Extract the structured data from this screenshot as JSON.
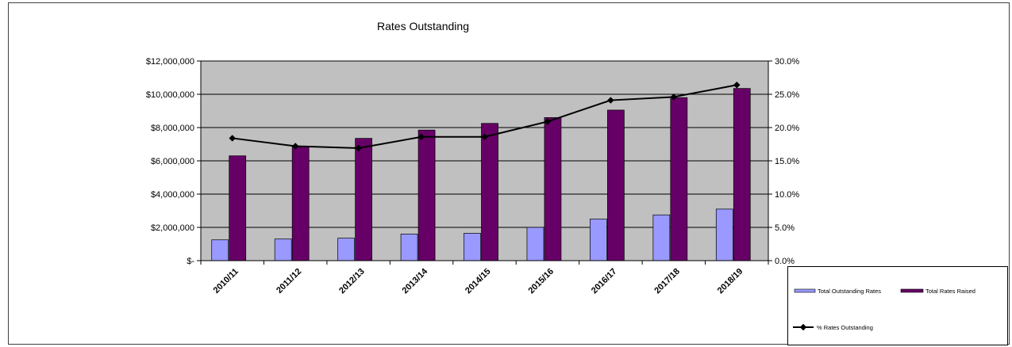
{
  "chart_data": {
    "type": "bar",
    "title": "Rates Outstanding",
    "categories": [
      "2010/11",
      "2011/12",
      "2012/13",
      "2013/14",
      "2014/15",
      "2015/16",
      "2016/17",
      "2017/18",
      "2018/19"
    ],
    "series": [
      {
        "name": "Total Outstanding Rates",
        "axis": "left",
        "type": "bar",
        "color": "#9999ff",
        "values": [
          1250000,
          1300000,
          1350000,
          1600000,
          1650000,
          2000000,
          2500000,
          2750000,
          3100000
        ]
      },
      {
        "name": "Total Rates Raised",
        "axis": "left",
        "type": "bar",
        "color": "#660066",
        "values": [
          6300000,
          6850000,
          7350000,
          7850000,
          8250000,
          8600000,
          9050000,
          9800000,
          10350000
        ]
      },
      {
        "name": "% Rates Outstanding",
        "axis": "right",
        "type": "line",
        "color": "#000000",
        "values": [
          18.4,
          17.2,
          16.9,
          18.6,
          18.6,
          20.9,
          24.1,
          24.6,
          26.4
        ]
      }
    ],
    "y_left": {
      "min": 0,
      "max": 12000000,
      "ticks": [
        "$-",
        "$2,000,000",
        "$4,000,000",
        "$6,000,000",
        "$8,000,000",
        "$10,000,000",
        "$12,000,000"
      ]
    },
    "y_right": {
      "min": 0,
      "max": 30,
      "ticks": [
        "0.0%",
        "5.0%",
        "10.0%",
        "15.0%",
        "20.0%",
        "25.0%",
        "30.0%"
      ]
    },
    "plot_background": "#c0c0c0",
    "grid": true,
    "legend": "bottom-right"
  }
}
